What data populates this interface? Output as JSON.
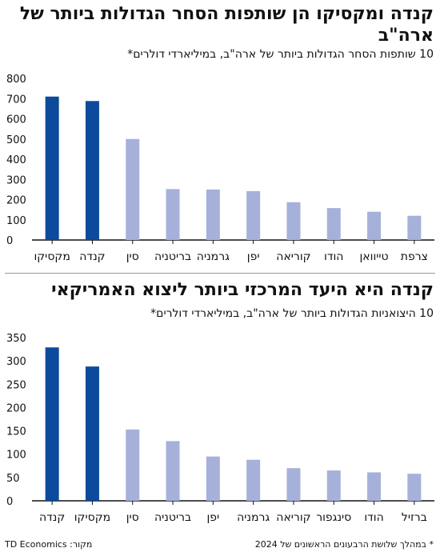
{
  "chart_data": [
    {
      "type": "bar",
      "title": "קנדה ומקסיקו הן שותפות הסחר הגדולות ביותר של ארה\"ב",
      "subtitle": "10 שותפות הסחר הגדולות ביותר של ארה\"ב, במיליארדי דולרים*",
      "categories": [
        "מקסיקו",
        "קנדה",
        "סין",
        "בריטניה",
        "גרמניה",
        "יפן",
        "קוריאה",
        "הודו",
        "טייוואן",
        "צרפת"
      ],
      "values": [
        710,
        688,
        500,
        252,
        250,
        242,
        187,
        158,
        140,
        120
      ],
      "highlight": [
        true,
        true,
        false,
        false,
        false,
        false,
        false,
        false,
        false,
        false
      ],
      "ylim": [
        0,
        800
      ],
      "yticks": [
        0,
        100,
        200,
        300,
        400,
        500,
        600,
        700,
        800
      ],
      "colors": {
        "highlight": "#0d4a9c",
        "other": "#a5b1d9"
      }
    },
    {
      "type": "bar",
      "title": "קנדה היא היעד המרכזי ביותר ליצוא האמריקאי",
      "subtitle": "10 היצואניות הגדולות ביותר של ארה\"ב, במיליארדי דולרים*",
      "categories": [
        "קנדה",
        "מקסיקו",
        "סין",
        "בריטניה",
        "יפן",
        "גרמניה",
        "קוריאה",
        "סינגפור",
        "הודו",
        "ברזיל"
      ],
      "values": [
        329,
        288,
        153,
        128,
        95,
        88,
        70,
        65,
        61,
        58
      ],
      "highlight": [
        true,
        true,
        false,
        false,
        false,
        false,
        false,
        false,
        false,
        false
      ],
      "ylim": [
        0,
        350
      ],
      "yticks": [
        0,
        50,
        100,
        150,
        200,
        250,
        300,
        350
      ],
      "colors": {
        "highlight": "#0d4a9c",
        "other": "#a5b1d9"
      }
    }
  ],
  "footer": {
    "note": "* במהלך שלושת הרבעונים הראשונים של 2024",
    "source": "מקור: TD Economics"
  }
}
